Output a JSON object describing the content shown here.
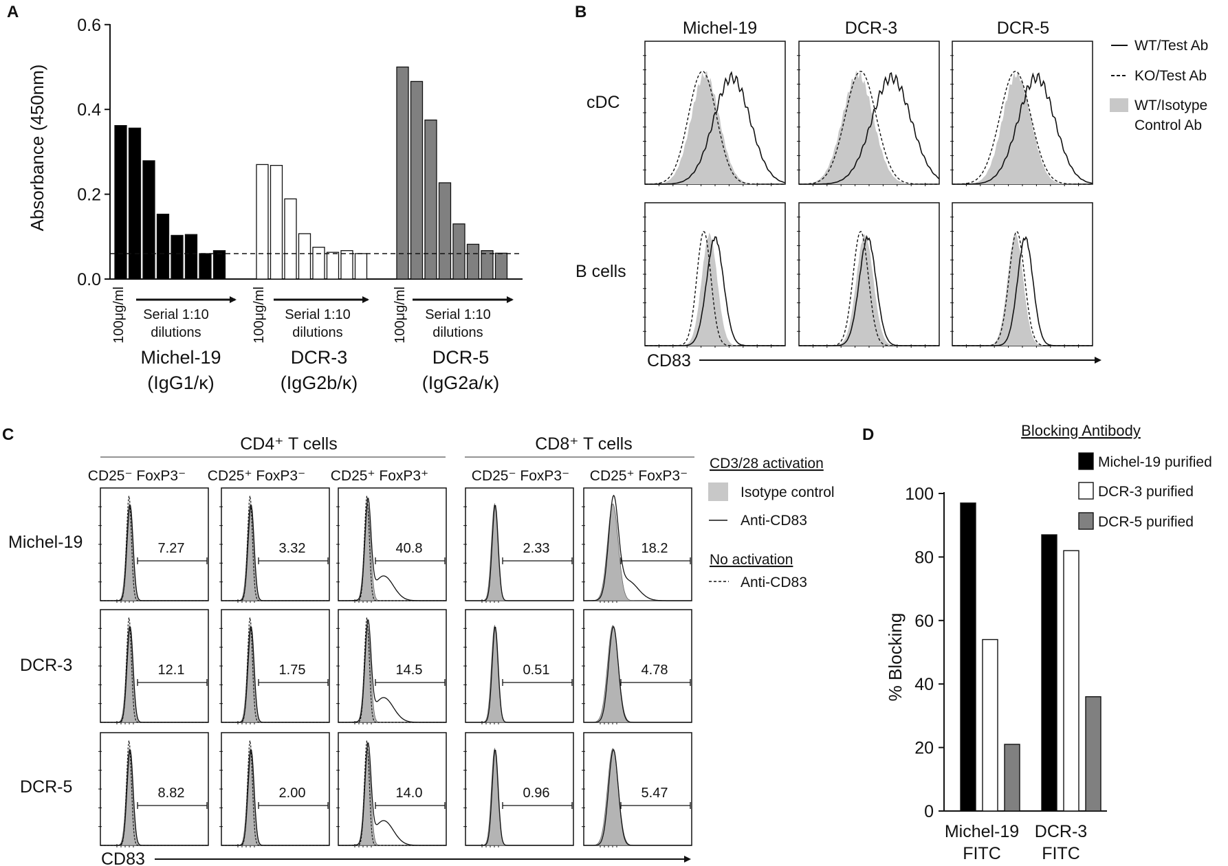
{
  "panelA": {
    "letter": "A",
    "chart_data": {
      "type": "bar",
      "ylabel": "Absorbance (450nm)",
      "ylim": [
        0,
        0.6
      ],
      "yticks": [
        "0.0",
        "0.2",
        "0.4",
        "0.6"
      ],
      "dashed_baseline": 0.06,
      "groups": [
        {
          "name": "Michel-19",
          "isotype": "(IgG1/κ)",
          "fill": "#000000",
          "values": [
            0.362,
            0.356,
            0.279,
            0.153,
            0.103,
            0.105,
            0.06,
            0.067
          ]
        },
        {
          "name": "DCR-3",
          "isotype": "(IgG2b/κ)",
          "fill": "#ffffff",
          "values": [
            0.27,
            0.268,
            0.189,
            0.107,
            0.075,
            0.063,
            0.067,
            0.06
          ]
        },
        {
          "name": "DCR-5",
          "isotype": "(IgG2a/κ)",
          "fill": "#808080",
          "values": [
            0.5,
            0.466,
            0.375,
            0.227,
            0.13,
            0.082,
            0.067,
            0.061
          ]
        }
      ],
      "start_conc": "100μg/ml",
      "dilution_label_1": "Serial 1:10",
      "dilution_label_2": "dilutions"
    }
  },
  "panelB": {
    "letter": "B",
    "columns": [
      "Michel-19",
      "DCR-3",
      "DCR-5"
    ],
    "rows": [
      "cDC",
      "B cells"
    ],
    "xlabel": "CD83",
    "legend": {
      "wt_test": "WT/Test Ab",
      "ko_test": "KO/Test Ab",
      "isotype_1": "WT/Isotype",
      "isotype_2": "Control Ab"
    }
  },
  "panelC": {
    "letter": "C",
    "group_cd4": "CD4⁺ T cells",
    "group_cd8": "CD8⁺ T cells",
    "columns": [
      "CD25⁻ FoxP3⁻",
      "CD25⁺ FoxP3⁻",
      "CD25⁺ FoxP3⁺",
      "CD25⁻ FoxP3⁻",
      "CD25⁺ FoxP3⁻"
    ],
    "rows": [
      "Michel-19",
      "DCR-3",
      "DCR-5"
    ],
    "gate_values": [
      [
        "7.27",
        "3.32",
        "40.8",
        "2.33",
        "18.2"
      ],
      [
        "12.1",
        "1.75",
        "14.5",
        "0.51",
        "4.78"
      ],
      [
        "8.82",
        "2.00",
        "14.0",
        "0.96",
        "5.47"
      ]
    ],
    "xlabel": "CD83",
    "legend": {
      "head1": "CD3/28 activation",
      "isotype": "Isotype control",
      "anti1": "Anti-CD83",
      "head2": "No activation",
      "anti2": "Anti-CD83"
    }
  },
  "panelD": {
    "letter": "D",
    "chart_data": {
      "type": "bar",
      "ylabel": "% Blocking",
      "ylim": [
        0,
        100
      ],
      "yticks": [
        "0",
        "20",
        "40",
        "60",
        "80",
        "100"
      ],
      "categories": [
        {
          "line1": "Michel-19",
          "line2": "FITC"
        },
        {
          "line1": "DCR-3",
          "line2": "FITC"
        }
      ],
      "series": [
        {
          "name": "Michel-19 purified",
          "fill": "#000000",
          "values": [
            97,
            87
          ]
        },
        {
          "name": "DCR-3 purified",
          "fill": "#ffffff",
          "values": [
            54,
            82
          ]
        },
        {
          "name": "DCR-5 purified",
          "fill": "#808080",
          "values": [
            21,
            36
          ]
        }
      ],
      "legend_title": "Blocking Antibody"
    }
  }
}
